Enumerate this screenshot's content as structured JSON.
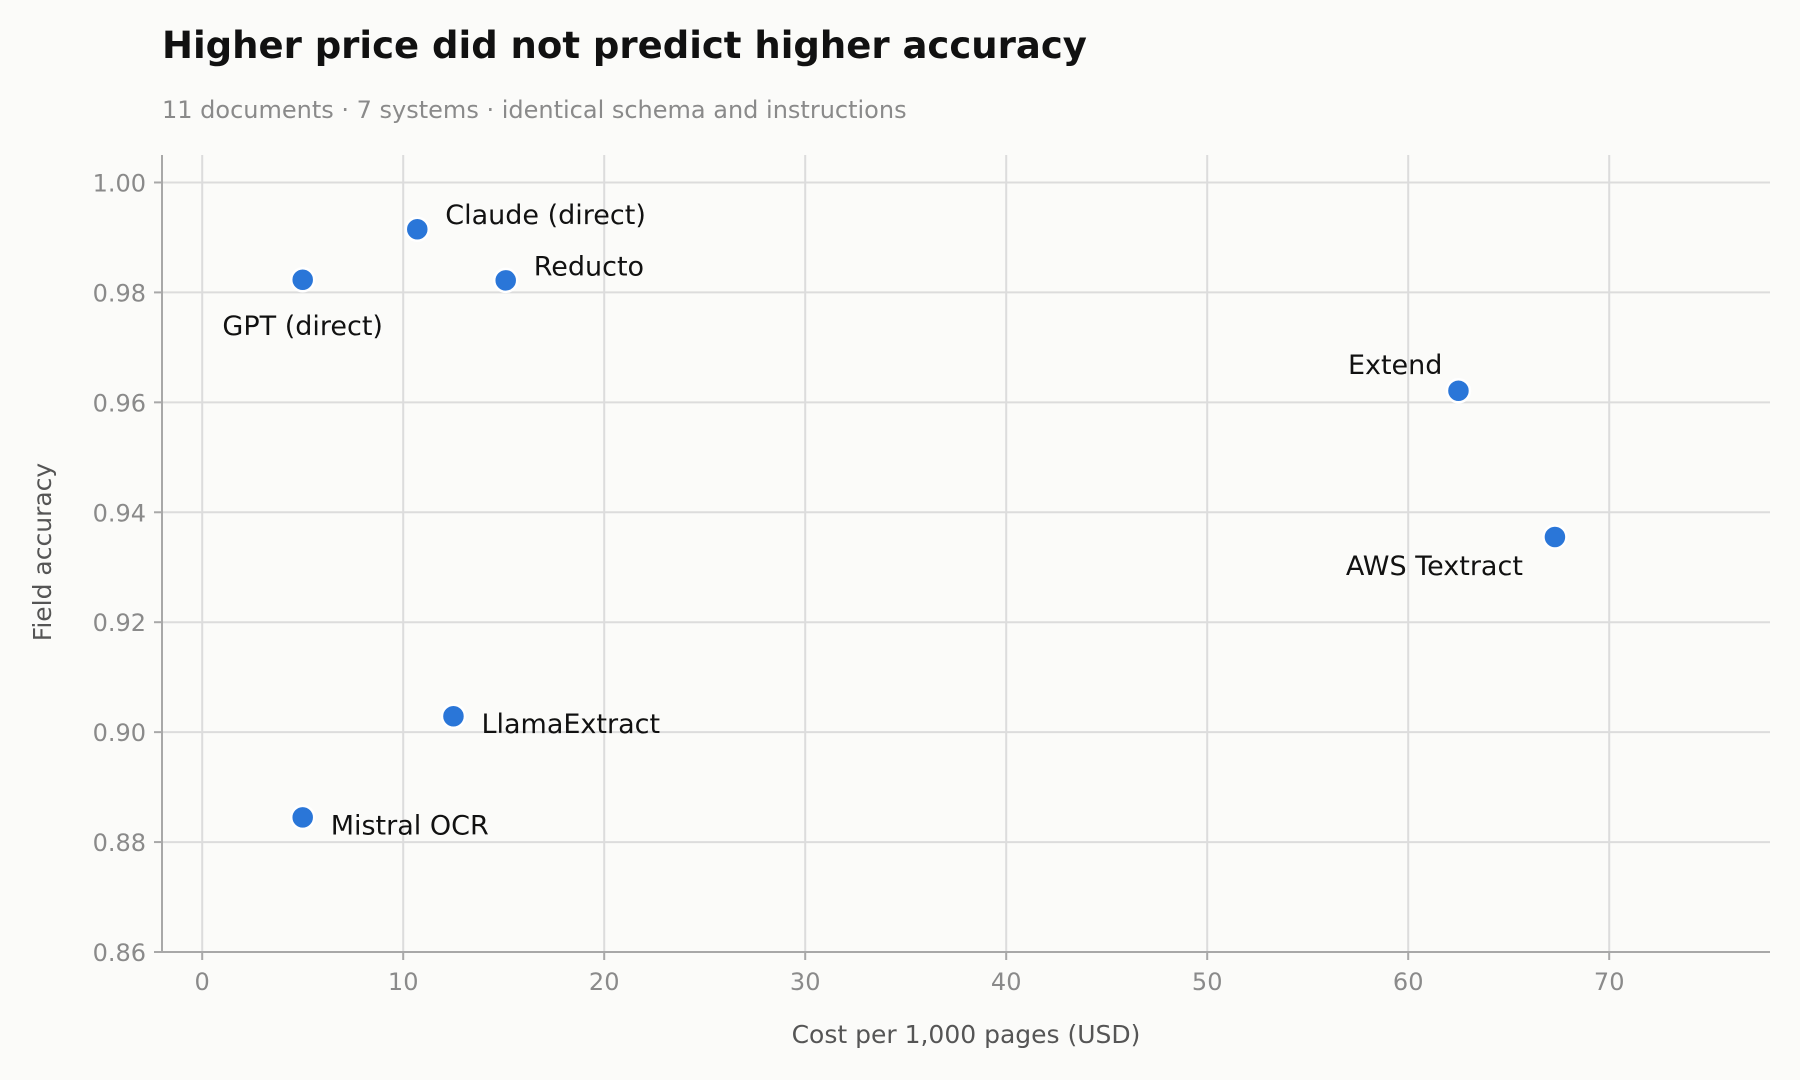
{
  "chart_data": {
    "type": "scatter",
    "title": "Higher price did not predict higher accuracy",
    "subtitle": "11 documents · 7 systems · identical schema and instructions",
    "xlabel": "Cost per 1,000 pages (USD)",
    "ylabel": "Field accuracy",
    "xlim": [
      -2,
      78
    ],
    "ylim": [
      0.86,
      1.005
    ],
    "xticks": [
      0,
      10,
      20,
      30,
      40,
      50,
      60,
      70
    ],
    "yticks": [
      0.86,
      0.88,
      0.9,
      0.92,
      0.94,
      0.96,
      0.98,
      1.0
    ],
    "ytick_labels": [
      "0.86",
      "0.88",
      "0.90",
      "0.92",
      "0.94",
      "0.96",
      "0.98",
      "1.00"
    ],
    "grid": true,
    "point_color": "#2a76d8",
    "points": [
      {
        "label": "Claude (direct)",
        "x": 10.7,
        "y": 0.9915,
        "label_pos": "upper-right"
      },
      {
        "label": "GPT (direct)",
        "x": 5.0,
        "y": 0.9823,
        "label_pos": "below"
      },
      {
        "label": "Reducto",
        "x": 15.1,
        "y": 0.9822,
        "label_pos": "upper-right"
      },
      {
        "label": "Extend",
        "x": 62.5,
        "y": 0.9621,
        "label_pos": "upper-left"
      },
      {
        "label": "AWS Textract",
        "x": 67.3,
        "y": 0.9355,
        "label_pos": "lower-left"
      },
      {
        "label": "LlamaExtract",
        "x": 12.5,
        "y": 0.9029,
        "label_pos": "right"
      },
      {
        "label": "Mistral OCR",
        "x": 5.0,
        "y": 0.8845,
        "label_pos": "right"
      }
    ]
  }
}
